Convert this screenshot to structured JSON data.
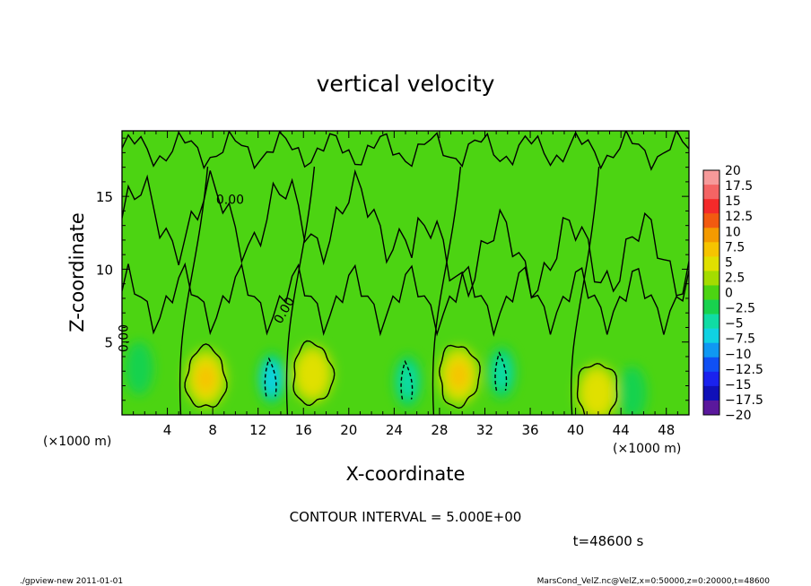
{
  "chart_data": {
    "type": "heatmap",
    "title": "vertical velocity",
    "xlabel": "X-coordinate",
    "ylabel": "Z-coordinate",
    "x_unit_label": "(×1000 m)",
    "y_unit_label": "(×1000 m)",
    "xlim": [
      0,
      50
    ],
    "ylim": [
      0,
      19.5
    ],
    "x_ticks": [
      4,
      8,
      12,
      16,
      20,
      24,
      28,
      32,
      36,
      40,
      44,
      48
    ],
    "y_ticks": [
      5,
      10,
      15
    ],
    "contour_interval_text": "CONTOUR INTERVAL = 5.000E+00",
    "time_text": "t=48600 s",
    "contour_labels": [
      {
        "text": "0.00",
        "x": 8.3,
        "z": 14.5,
        "rotate": 0
      },
      {
        "text": "0.00",
        "x": 0.5,
        "z": 4.3,
        "rotate": -90
      },
      {
        "text": "0.00",
        "x": 14.0,
        "z": 6.2,
        "rotate": -60
      }
    ],
    "colorbar": {
      "levels": [
        "20",
        "17.5",
        "15",
        "12.5",
        "10",
        "7.5",
        "5",
        "2.5",
        "0",
        "−2.5",
        "−5",
        "−7.5",
        "−10",
        "−12.5",
        "−15",
        "−17.5",
        "−20"
      ],
      "colors": [
        "#f69a9a",
        "#f46464",
        "#f42a2a",
        "#f25a10",
        "#f49a00",
        "#f6c400",
        "#e0e000",
        "#a4dc00",
        "#4cd412",
        "#18d24e",
        "#10dca4",
        "#10d2e2",
        "#1098f2",
        "#1050f4",
        "#1a22ee",
        "#1010b8",
        "#5a189c"
      ]
    },
    "background_value": 0.5,
    "updrafts": [
      {
        "x": 7.4,
        "z": 2.5,
        "peak": 7.5
      },
      {
        "x": 16.8,
        "z": 2.8,
        "peak": 6.5
      },
      {
        "x": 29.7,
        "z": 2.7,
        "peak": 7.5
      },
      {
        "x": 41.9,
        "z": 1.5,
        "peak": 5.5
      }
    ],
    "downdrafts": [
      {
        "x": 13.2,
        "z": 2.5,
        "min": -6.5
      },
      {
        "x": 25.2,
        "z": 2.3,
        "min": -3.5
      },
      {
        "x": 33.5,
        "z": 2.9,
        "min": -3.0
      },
      {
        "x": 1.5,
        "z": 3.2,
        "min": -2.5
      },
      {
        "x": 45.0,
        "z": 1.5,
        "min": -2.5
      }
    ]
  },
  "footer": {
    "left": "./gpview-new  2011-01-01",
    "right": "MarsCond_VelZ.nc@VelZ,x=0:50000,z=0:20000,t=48600"
  }
}
